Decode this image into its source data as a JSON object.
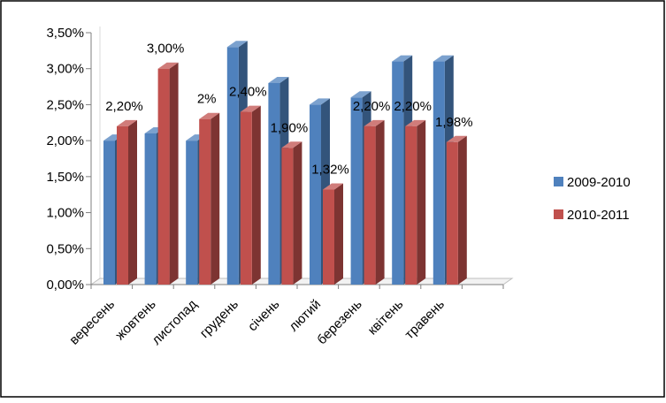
{
  "chart_data": {
    "type": "bar",
    "style": "3d-clustered-column",
    "title": "",
    "xlabel": "",
    "ylabel": "",
    "ylim": [
      0,
      3.5
    ],
    "y_ticks": [
      "0,00%",
      "0,50%",
      "1,00%",
      "1,50%",
      "2,00%",
      "2,50%",
      "3,00%",
      "3,50%"
    ],
    "grid": false,
    "legend_position": "right",
    "categories": [
      "вересень",
      "жовтень",
      "листопад",
      "грудень",
      "січень",
      "лютий",
      "березень",
      "квітень",
      "травень"
    ],
    "series": [
      {
        "name": "2009-2010",
        "color": "#4F81BD",
        "values": [
          2.0,
          2.1,
          2.0,
          3.3,
          2.8,
          2.5,
          2.6,
          3.1,
          3.1
        ]
      },
      {
        "name": "2010-2011",
        "color": "#C0504D",
        "values": [
          2.2,
          3.0,
          2.3,
          2.4,
          1.9,
          1.32,
          2.2,
          2.2,
          1.98
        ],
        "data_labels": [
          "2,20%",
          "3,00%",
          "2%",
          "2,40%",
          "1,90%",
          "1,32%",
          "2,20%",
          "2,20%",
          "1,98%"
        ]
      }
    ]
  }
}
